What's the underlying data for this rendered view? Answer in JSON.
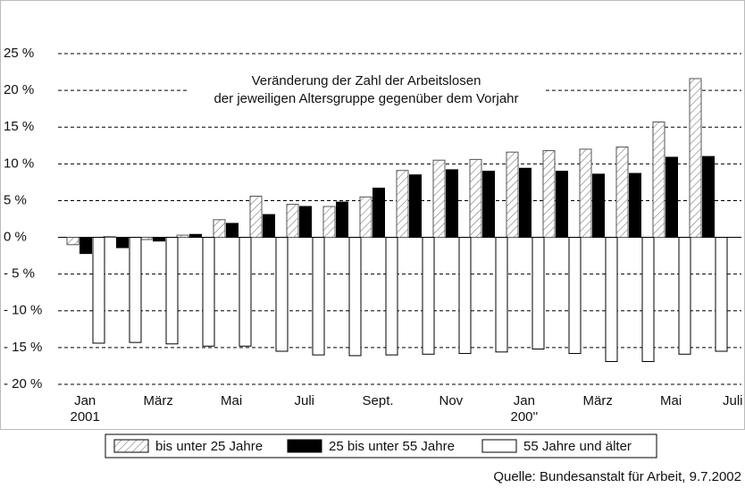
{
  "chart_data": {
    "type": "bar",
    "title": "Veränderung der Zahl der Arbeitslosen",
    "subtitle": "der jeweiligen Altersgruppe gegenüber dem Vorjahr",
    "source": "Quelle: Bundesanstalt für Arbeit, 9.7.2002",
    "categories": [
      "Jan\n2001",
      null,
      "März",
      null,
      "Mai",
      null,
      "Juli",
      null,
      "Sept.",
      null,
      "Nov",
      null,
      "Jan\n200''",
      null,
      "März",
      null,
      "Mai",
      null,
      "Juli"
    ],
    "series": [
      {
        "name": "bis unter 25 Jahre",
        "color": "#ffffff",
        "hatch": true,
        "values": [
          -1,
          0.1,
          -0.3,
          0.3,
          2.4,
          5.6,
          4.5,
          4.2,
          5.5,
          9.1,
          10.5,
          10.6,
          11.6,
          11.8,
          12.0,
          12.3,
          15.7,
          21.6,
          null
        ]
      },
      {
        "name": "25 bis unter 55 Jahre",
        "color": "#000000",
        "values": [
          -2.2,
          -1.4,
          -0.5,
          0.4,
          1.9,
          3.1,
          4.2,
          4.8,
          6.7,
          8.5,
          9.2,
          9.0,
          9.4,
          9.0,
          8.6,
          8.7,
          10.9,
          11.0,
          null
        ]
      },
      {
        "name": "55 Jahre und älter",
        "color": "#ffffff",
        "values": [
          -14.4,
          -14.3,
          -14.5,
          -14.8,
          -14.8,
          -15.5,
          -16.0,
          -16.1,
          -16.0,
          -15.9,
          -15.8,
          -15.6,
          -15.2,
          -15.8,
          -16.9,
          -16.9,
          -15.9,
          -15.5,
          null
        ]
      }
    ],
    "ylim": [
      -20,
      25
    ],
    "yticks": [
      {
        "value": 25,
        "label": "25 %"
      },
      {
        "value": 20,
        "label": "20 %"
      },
      {
        "value": 15,
        "label": "15 %"
      },
      {
        "value": 10,
        "label": "10 %"
      },
      {
        "value": 5,
        "label": "5 %"
      },
      {
        "value": 0,
        "label": "0 %"
      },
      {
        "value": -5,
        "label": "- 5 %"
      },
      {
        "value": -10,
        "label": "- 10 %"
      },
      {
        "value": -15,
        "label": "- 15 %"
      },
      {
        "value": -20,
        "label": "- 20 %"
      }
    ],
    "grid": true
  }
}
